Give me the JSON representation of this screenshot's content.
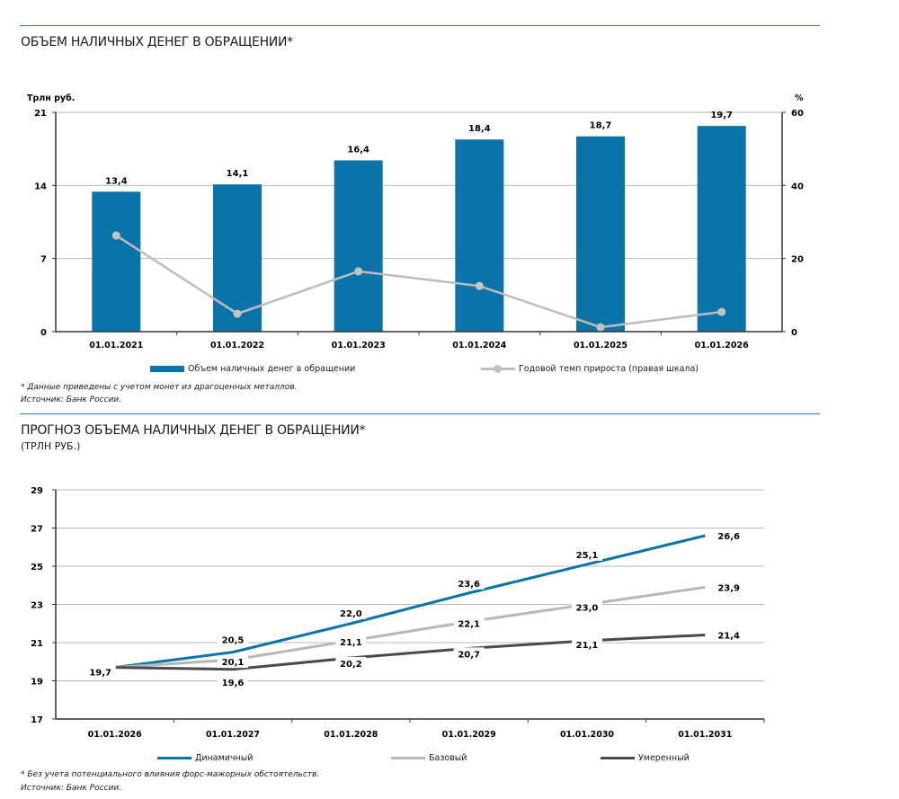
{
  "colors": {
    "accent": "#0a74a8",
    "growth": "#bdbdbd",
    "base": "#b7b7b7",
    "moderate": "#4a4a4a",
    "grid": "#b9b9b9",
    "rule": "#2a87b3"
  },
  "section1": {
    "title": "ОБЪЕМ НАЛИЧНЫХ ДЕНЕГ В ОБРАЩЕНИИ*",
    "note": "* Данные приведены с учетом монет из драгоценных металлов.",
    "source": "Источник: Банк России.",
    "legend": {
      "bars": "Объем наличных денег в обращении",
      "line": "Годовой темп прироста (правая шкала)"
    }
  },
  "section2": {
    "title": "ПРОГНОЗ ОБЪЕМА НАЛИЧНЫХ ДЕНЕГ В ОБРАЩЕНИИ*",
    "subtitle": "(ТРЛН РУБ.)",
    "note": "* Без учета потенциального влияния форс-мажорных обстоятельств.",
    "source": "Источник: Банк России.",
    "legend": {
      "dynamic": "Динамичный",
      "base": "Базовый",
      "moderate": "Умеренный"
    }
  },
  "chart_data": [
    {
      "type": "bar",
      "title": "ОБЪЕМ НАЛИЧНЫХ ДЕНЕГ В ОБРАЩЕНИИ*",
      "categories": [
        "01.01.2021",
        "01.01.2022",
        "01.01.2023",
        "01.01.2024",
        "01.01.2025",
        "01.01.2026"
      ],
      "ylabel": "Трлн руб.",
      "y2label": "%",
      "ylim": [
        0,
        21
      ],
      "y2lim": [
        0,
        60
      ],
      "yticks": [
        "0",
        "7",
        "14",
        "21"
      ],
      "y2ticks": [
        "0",
        "20",
        "40",
        "60"
      ],
      "grid": true,
      "legend": "bottom",
      "series": [
        {
          "name": "Объем наличных денег в обращении",
          "type": "bar",
          "axis": "left",
          "values": [
            13.4,
            14.1,
            16.4,
            18.4,
            18.7,
            19.7
          ],
          "labels": [
            "13,4",
            "14,1",
            "16,4",
            "18,4",
            "18,7",
            "19,7"
          ]
        },
        {
          "name": "Годовой темп прироста (правая шкала)",
          "type": "line",
          "axis": "right",
          "values": [
            26.3,
            4.9,
            16.5,
            12.5,
            1.2,
            5.4
          ]
        }
      ]
    },
    {
      "type": "line",
      "title": "ПРОГНОЗ ОБЪЕМА НАЛИЧНЫХ ДЕНЕГ В ОБРАЩЕНИИ*",
      "subtitle": "(ТРЛН РУБ.)",
      "categories": [
        "01.01.2026",
        "01.01.2027",
        "01.01.2028",
        "01.01.2029",
        "01.01.2030",
        "01.01.2031"
      ],
      "ylim": [
        17,
        29
      ],
      "yticks": [
        "17",
        "19",
        "21",
        "23",
        "25",
        "27",
        "29"
      ],
      "grid": true,
      "legend": "bottom",
      "series": [
        {
          "name": "Динамичный",
          "values": [
            19.7,
            20.5,
            22.0,
            23.6,
            25.1,
            26.6
          ],
          "labels": [
            "19,7",
            "20,5",
            "22,0",
            "23,6",
            "25,1",
            "26,6"
          ]
        },
        {
          "name": "Базовый",
          "values": [
            19.7,
            20.1,
            21.1,
            22.1,
            23.0,
            23.9
          ],
          "labels": [
            "",
            "20,1",
            "21,1",
            "22,1",
            "23,0",
            "23,9"
          ]
        },
        {
          "name": "Умеренный",
          "values": [
            19.7,
            19.6,
            20.2,
            20.7,
            21.1,
            21.4
          ],
          "labels": [
            "",
            "19,6",
            "20,2",
            "20,7",
            "21,1",
            "21,4"
          ]
        }
      ]
    }
  ]
}
